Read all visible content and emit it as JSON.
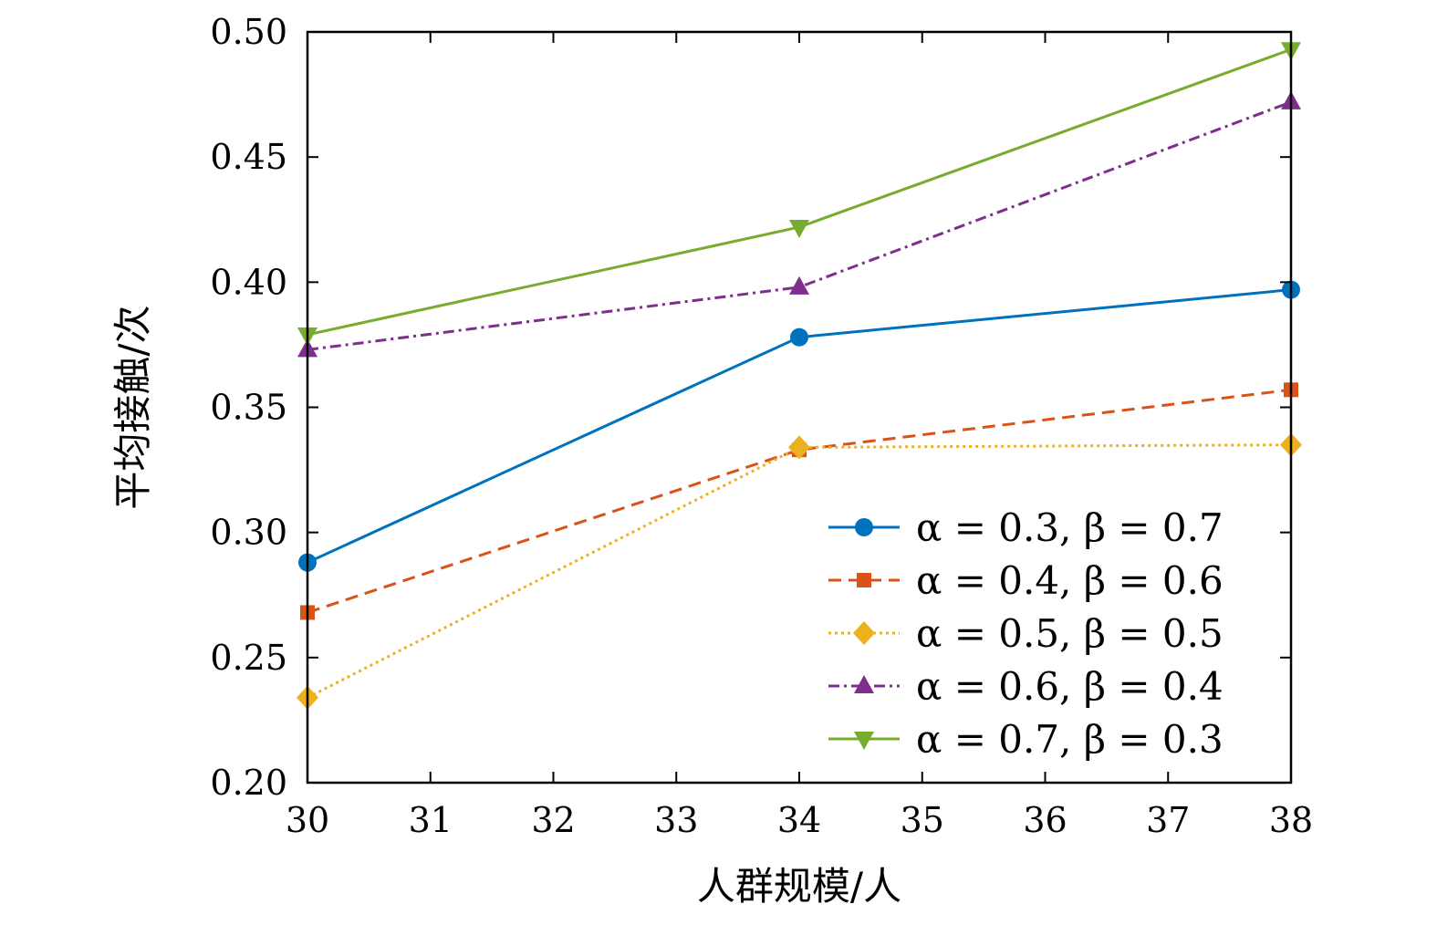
{
  "chart_data": {
    "type": "line",
    "title": "",
    "xlabel": "人群规模/人",
    "ylabel": "平均接触/次",
    "x": [
      30,
      34,
      38
    ],
    "xlim": [
      30,
      38
    ],
    "ylim": [
      0.2,
      0.5
    ],
    "xticks": [
      "30",
      "31",
      "32",
      "33",
      "34",
      "35",
      "36",
      "37",
      "38"
    ],
    "yticks": [
      "0.20",
      "0.25",
      "0.30",
      "0.35",
      "0.40",
      "0.45",
      "0.50"
    ],
    "grid": false,
    "legend_position": "bottom-right",
    "series": [
      {
        "name": "α = 0.3, β = 0.7",
        "values": [
          0.288,
          0.378,
          0.397
        ],
        "color": "#0072BD",
        "marker": "circle",
        "dash": "solid"
      },
      {
        "name": "α = 0.4, β = 0.6",
        "values": [
          0.268,
          0.333,
          0.357
        ],
        "color": "#D95319",
        "marker": "square",
        "dash": "dashed"
      },
      {
        "name": "α = 0.5, β = 0.5",
        "values": [
          0.234,
          0.334,
          0.335
        ],
        "color": "#EDB120",
        "marker": "diamond",
        "dash": "dotted"
      },
      {
        "name": "α = 0.6, β = 0.4",
        "values": [
          0.373,
          0.398,
          0.472
        ],
        "color": "#7E2F8E",
        "marker": "triangle-up",
        "dash": "dashdot"
      },
      {
        "name": "α = 0.7, β = 0.3",
        "values": [
          0.379,
          0.422,
          0.493
        ],
        "color": "#77AC30",
        "marker": "triangle-down",
        "dash": "solid"
      }
    ]
  }
}
